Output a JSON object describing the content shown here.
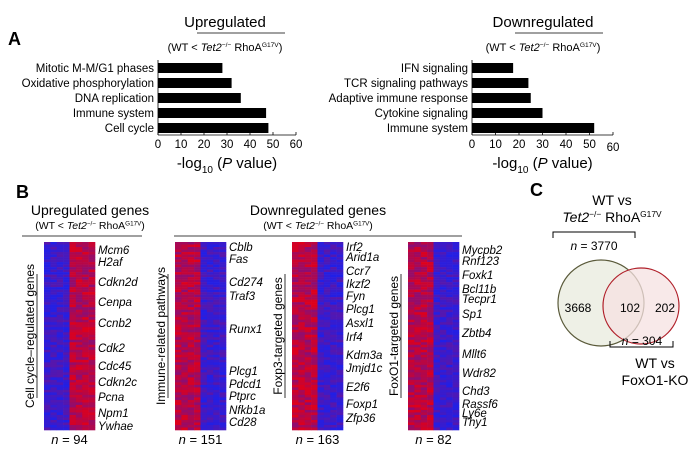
{
  "panel_a": {
    "letter": "A",
    "subtitle": {
      "open": "(WT < ",
      "gene": "Tet2",
      "gene_sup": "−/−",
      "rhoa": " RhoA",
      "rhoa_sup": "G17V",
      "close": ")"
    },
    "xlabel": {
      "pre": "-log",
      "sub": "10",
      "mid": " (",
      "p": "P",
      "post": " value)"
    }
  },
  "chart_data": [
    {
      "type": "bar",
      "orientation": "horizontal",
      "title": "Upregulated",
      "categories": [
        "Mitotic M-M/G1 phases",
        "Oxidative phosphorylation",
        "DNA replication",
        "Immune system",
        "Cell cycle"
      ],
      "values": [
        28,
        32,
        36,
        47,
        48
      ],
      "xlim": [
        0,
        60
      ],
      "xticks": [
        "0",
        "10",
        "20",
        "30",
        "40",
        "50",
        "60"
      ],
      "bar_color": "#000000",
      "grid": false
    },
    {
      "type": "bar",
      "orientation": "horizontal",
      "title": "Downregulated",
      "categories": [
        "IFN signaling",
        "TCR signaling pathways",
        "Adaptive immune response",
        "Cytokine signaling",
        "Immune system"
      ],
      "values": [
        17.5,
        24,
        25,
        30,
        52
      ],
      "xlim": [
        0,
        60
      ],
      "xticks": [
        "0",
        "10",
        "20",
        "30",
        "40",
        "50",
        "60"
      ],
      "bar_color": "#000000",
      "grid": false
    }
  ],
  "panel_b": {
    "letter": "B",
    "up_title": "Upregulated genes",
    "down_title": "Downregulated genes",
    "colors": {
      "high": "#e0001a",
      "low": "#2020e8"
    },
    "heatmaps": [
      {
        "side_label": "Cell cycle–regulated genes",
        "n": "94",
        "pattern": "blue-red",
        "genes": [
          "Mcm6",
          "H2af",
          "Cdkn2d",
          "Cenpa",
          "Ccnb2",
          "Cdk2",
          "Cdc45",
          "Cdkn2c",
          "Pcna",
          "Npm1",
          "Ywhae"
        ]
      },
      {
        "side_label": "Immune-related pathways",
        "n": "151",
        "pattern": "red-blue",
        "genes": [
          "Cblb",
          "Fas",
          "Cd274",
          "Traf3",
          "Runx1",
          "Plcg1",
          "Pdcd1",
          "Ptprc",
          "Nfkb1a",
          "Cd28"
        ]
      },
      {
        "side_label": "Foxp3-targeted genes",
        "n": "163",
        "pattern": "red-blue",
        "genes": [
          "Irf2",
          "Arid1a",
          "Ccr7",
          "Ikzf2",
          "Fyn",
          "Plcg1",
          "Asxl1",
          "Irf4",
          "Kdm3a",
          "Jmjd1c",
          "E2f6",
          "Foxp1",
          "Zfp36"
        ]
      },
      {
        "side_label": "FoxO1-targeted genes",
        "n": "82",
        "pattern": "red-blue",
        "genes": [
          "Mycpb2",
          "Rnf123",
          "Foxk1",
          "Bcl11b",
          "Tecpr1",
          "Sp1",
          "Zbtb4",
          "Mllt6",
          "Wdr82",
          "Chd3",
          "Rassf6",
          "Ly6e",
          "Thy1"
        ]
      }
    ]
  },
  "panel_c": {
    "letter": "C",
    "set1_title_line1": "WT vs",
    "set1_total": "3770",
    "set2_title_line1": "WT vs",
    "set2_title_line2": "FoxO1-KO",
    "set2_total": "304",
    "only_set1": "3668",
    "overlap": "102",
    "only_set2": "202",
    "colors": {
      "set1_stroke": "#5a5a3a",
      "set1_fill": "#eef0e6",
      "set2_stroke": "#b0202a",
      "set2_fill": "#f6e2e2",
      "overlap_fill": "#e6d6cf"
    }
  }
}
